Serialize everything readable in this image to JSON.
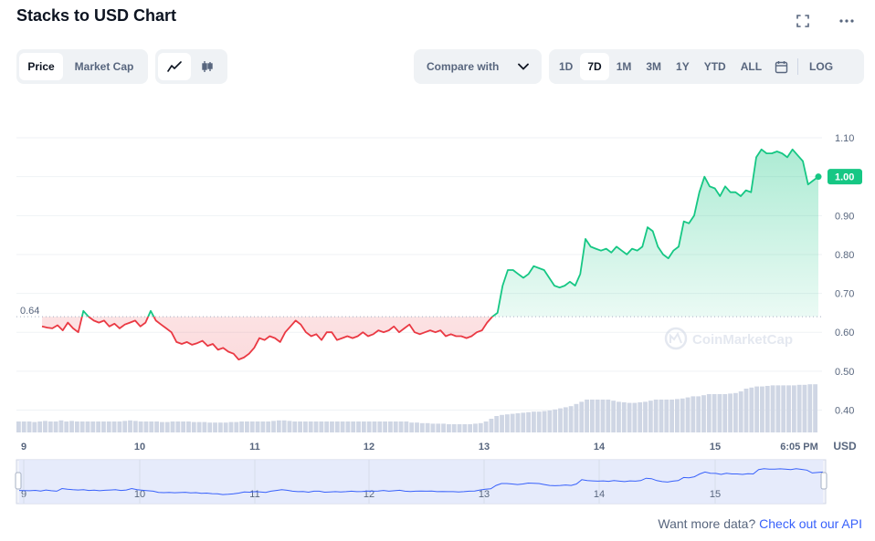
{
  "header": {
    "title": "Stacks to USD Chart",
    "fullscreen_icon": "fullscreen-icon",
    "more_icon": "more-horizontal-icon"
  },
  "view_tabs": [
    {
      "label": "Price",
      "active": true
    },
    {
      "label": "Market Cap",
      "active": false
    }
  ],
  "chart_style_buttons": [
    {
      "icon": "line-chart-icon",
      "active": true
    },
    {
      "icon": "candlestick-icon",
      "active": false
    }
  ],
  "compare": {
    "label": "Compare with",
    "icon": "chevron-down-icon"
  },
  "ranges": [
    {
      "label": "1D",
      "active": false
    },
    {
      "label": "7D",
      "active": true
    },
    {
      "label": "1M",
      "active": false
    },
    {
      "label": "3M",
      "active": false
    },
    {
      "label": "1Y",
      "active": false
    },
    {
      "label": "YTD",
      "active": false
    },
    {
      "label": "ALL",
      "active": false
    }
  ],
  "calendar_icon": "calendar-icon",
  "log_label": "LOG",
  "watermark": "CoinMarketCap",
  "footer": {
    "text": "Want more data?",
    "link": "Check out our API"
  },
  "chart_data": {
    "type": "line",
    "ylim": [
      0.38,
      1.14
    ],
    "y_ticks": [
      "1.10",
      "1.00",
      "0.90",
      "0.80",
      "0.70",
      "0.60",
      "0.50",
      "0.40"
    ],
    "y_unit": "USD",
    "x_ticks": [
      "9",
      "10",
      "11",
      "12",
      "13",
      "14",
      "15",
      "6:05 PM"
    ],
    "baseline": {
      "value": 0.64,
      "label": "0.64"
    },
    "current": {
      "value": 1.0,
      "label": "1.00"
    },
    "colors": {
      "up": "#16c784",
      "down": "#ea3943",
      "volume": "#cfd6e4",
      "nav_line": "#3861fb"
    },
    "grid": true,
    "series": [
      {
        "values": [
          0.615,
          0.612,
          0.61,
          0.618,
          0.605,
          0.625,
          0.61,
          0.6,
          0.655,
          0.64,
          0.63,
          0.625,
          0.63,
          0.615,
          0.622,
          0.61,
          0.62,
          0.625,
          0.63,
          0.615,
          0.625,
          0.655,
          0.63,
          0.62,
          0.61,
          0.6,
          0.575,
          0.57,
          0.575,
          0.568,
          0.572,
          0.578,
          0.565,
          0.57,
          0.555,
          0.56,
          0.55,
          0.545,
          0.53,
          0.535,
          0.545,
          0.56,
          0.585,
          0.58,
          0.59,
          0.585,
          0.575,
          0.6,
          0.615,
          0.63,
          0.62,
          0.6,
          0.59,
          0.595,
          0.58,
          0.6,
          0.6,
          0.58,
          0.585,
          0.59,
          0.585,
          0.59,
          0.6,
          0.59,
          0.595,
          0.605,
          0.6,
          0.605,
          0.615,
          0.6,
          0.61,
          0.62,
          0.6,
          0.595,
          0.6,
          0.605,
          0.6,
          0.605,
          0.59,
          0.595,
          0.59,
          0.59,
          0.585,
          0.59,
          0.6,
          0.605,
          0.625,
          0.64,
          0.65,
          0.72,
          0.76,
          0.76,
          0.75,
          0.74,
          0.75,
          0.77,
          0.765,
          0.76,
          0.74,
          0.72,
          0.715,
          0.72,
          0.73,
          0.72,
          0.75,
          0.84,
          0.82,
          0.815,
          0.81,
          0.815,
          0.805,
          0.82,
          0.81,
          0.8,
          0.815,
          0.81,
          0.82,
          0.87,
          0.86,
          0.82,
          0.8,
          0.79,
          0.81,
          0.82,
          0.885,
          0.88,
          0.9,
          0.96,
          1.0,
          0.975,
          0.97,
          0.95,
          0.975,
          0.96,
          0.96,
          0.95,
          0.965,
          0.96,
          1.05,
          1.07,
          1.06,
          1.06,
          1.065,
          1.06,
          1.05,
          1.07,
          1.055,
          1.04,
          0.98,
          0.99,
          1.0
        ],
        "volume": [
          0.2,
          0.2,
          0.2,
          0.19,
          0.2,
          0.21,
          0.2,
          0.2,
          0.22,
          0.2,
          0.21,
          0.2,
          0.2,
          0.2,
          0.2,
          0.2,
          0.2,
          0.2,
          0.2,
          0.2,
          0.21,
          0.22,
          0.21,
          0.2,
          0.2,
          0.2,
          0.2,
          0.19,
          0.19,
          0.2,
          0.2,
          0.2,
          0.2,
          0.19,
          0.19,
          0.19,
          0.18,
          0.18,
          0.18,
          0.18,
          0.19,
          0.19,
          0.2,
          0.2,
          0.2,
          0.2,
          0.2,
          0.2,
          0.21,
          0.22,
          0.22,
          0.21,
          0.2,
          0.2,
          0.2,
          0.2,
          0.2,
          0.2,
          0.2,
          0.2,
          0.2,
          0.2,
          0.2,
          0.2,
          0.2,
          0.2,
          0.2,
          0.2,
          0.2,
          0.2,
          0.2,
          0.2,
          0.2,
          0.2,
          0.18,
          0.18,
          0.17,
          0.17,
          0.16,
          0.16,
          0.16,
          0.15,
          0.15,
          0.15,
          0.15,
          0.15,
          0.16,
          0.17,
          0.2,
          0.25,
          0.3,
          0.32,
          0.33,
          0.34,
          0.35,
          0.36,
          0.37,
          0.38,
          0.38,
          0.39,
          0.4,
          0.42,
          0.44,
          0.46,
          0.48,
          0.52,
          0.56,
          0.6,
          0.6,
          0.6,
          0.6,
          0.6,
          0.58,
          0.56,
          0.55,
          0.54,
          0.54,
          0.55,
          0.56,
          0.58,
          0.6,
          0.6,
          0.6,
          0.6,
          0.61,
          0.62,
          0.64,
          0.66,
          0.66,
          0.68,
          0.7,
          0.7,
          0.7,
          0.7,
          0.71,
          0.72,
          0.75,
          0.8,
          0.82,
          0.84,
          0.84,
          0.85,
          0.86,
          0.86,
          0.86,
          0.86,
          0.86,
          0.87,
          0.87,
          0.88,
          0.88
        ]
      }
    ]
  }
}
